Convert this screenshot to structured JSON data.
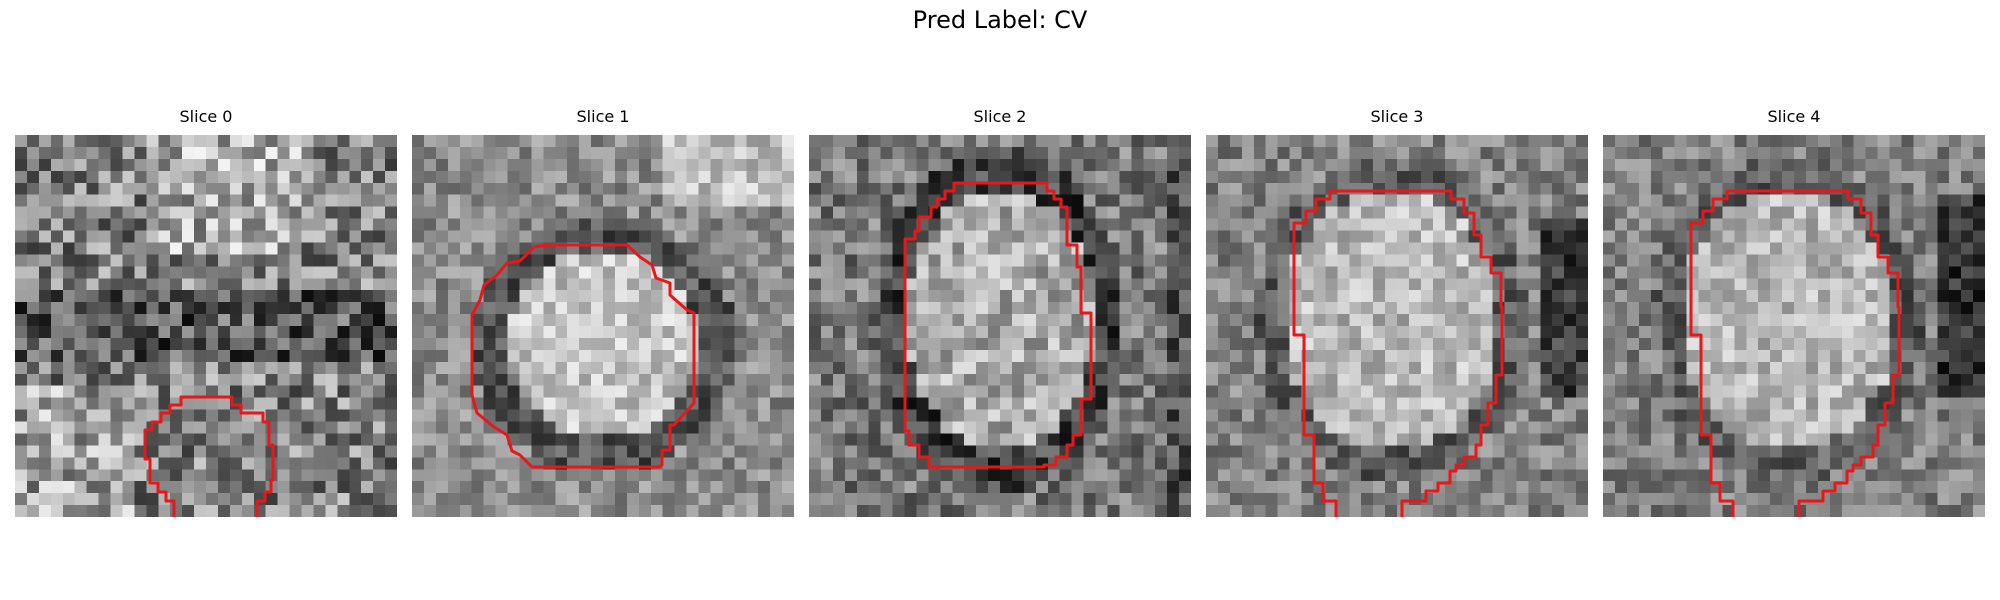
{
  "figure": {
    "title": "Pred Label: CV",
    "contour_color": "#e8171a"
  },
  "panels": [
    {
      "title": "Slice 0",
      "contour": "open-bottom-small"
    },
    {
      "title": "Slice 1",
      "contour": "closed-octagon"
    },
    {
      "title": "Slice 2",
      "contour": "closed-tall"
    },
    {
      "title": "Slice 3",
      "contour": "open-bottom-large"
    },
    {
      "title": "Slice 4",
      "contour": "open-bottom-large"
    }
  ]
}
